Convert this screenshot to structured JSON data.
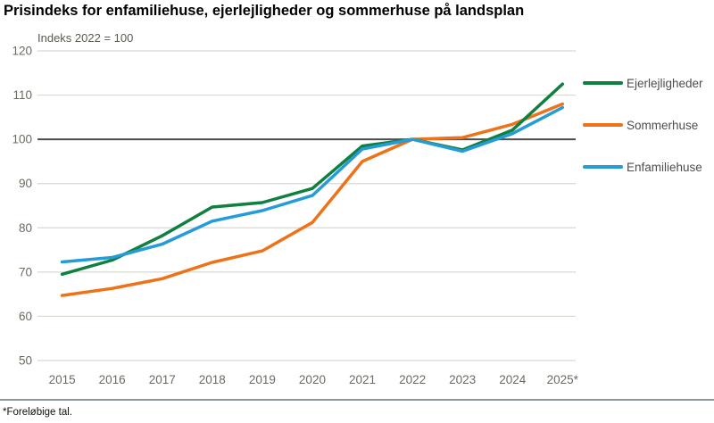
{
  "title": "Prisindeks for enfamiliehuse, ejerlejligheder og sommerhuse på landsplan",
  "unit_label": "Indeks 2022 = 100",
  "footnote": "*Foreløbige tal.",
  "chart_data": {
    "type": "line",
    "title": "Prisindeks for enfamiliehuse, ejerlejligheder og sommerhuse på landsplan",
    "subtitle": "Indeks 2022 = 100",
    "categories": [
      "2015",
      "2016",
      "2017",
      "2018",
      "2019",
      "2020",
      "2021",
      "2022",
      "2023",
      "2024",
      "2025*"
    ],
    "series": [
      {
        "name": "Ejerlejligheder",
        "color": "#0f8040",
        "values": [
          69.5,
          72.7,
          78.2,
          84.7,
          85.7,
          88.9,
          98.5,
          100,
          97.6,
          102.1,
          112.5
        ]
      },
      {
        "name": "Sommerhuse",
        "color": "#ee7219",
        "values": [
          64.7,
          66.3,
          68.5,
          72.2,
          74.8,
          81.2,
          95.0,
          100,
          100.4,
          103.4,
          108.0
        ]
      },
      {
        "name": "Enfamiliehuse",
        "color": "#259bd7",
        "values": [
          72.3,
          73.3,
          76.3,
          81.5,
          83.9,
          87.3,
          97.8,
          100,
          97.3,
          101.3,
          107.2
        ]
      }
    ],
    "xlabel": "",
    "ylabel": "",
    "ylim": [
      50,
      120
    ],
    "ytick_step": 10,
    "yticks": [
      50,
      60,
      70,
      80,
      90,
      100,
      110,
      120
    ],
    "highlighted_gridline": 100,
    "grid": true,
    "legend_position": "right"
  },
  "colors": {
    "grid": "#d8d8d0",
    "baseline": "#4d4d4d",
    "axis_text": "#6b6b60",
    "legend_text": "#4d4d4d",
    "footer_rule": "#8a989c"
  }
}
